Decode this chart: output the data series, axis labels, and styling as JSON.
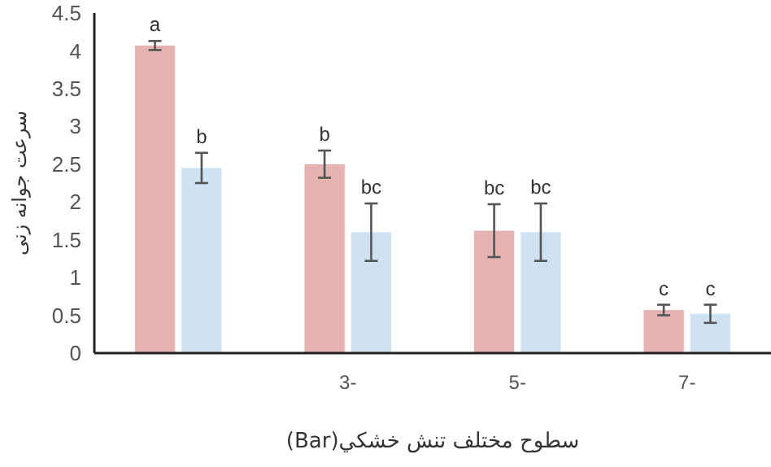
{
  "chart_data": {
    "type": "bar",
    "xlabel": "سطوح مختلف تنش خشكي(Bar)",
    "ylabel": "سرعت جوانه زنی",
    "categories": [
      null,
      "3-",
      "5-",
      "7-"
    ],
    "ylim": [
      0,
      4.5
    ],
    "yticks": [
      0,
      0.5,
      1,
      1.5,
      2,
      2.5,
      3,
      3.5,
      4,
      4.5
    ],
    "grid": false,
    "series": [
      {
        "color": "#e6b3b3",
        "values": [
          4.07,
          2.5,
          1.62,
          0.57
        ],
        "errors": [
          0.06,
          0.18,
          0.35,
          0.07
        ],
        "value_labels": [
          "a",
          "b",
          "bc",
          "c"
        ]
      },
      {
        "color": "#cfe2f3",
        "values": [
          2.45,
          1.6,
          1.6,
          0.52
        ],
        "errors": [
          0.2,
          0.38,
          0.38,
          0.12
        ],
        "value_labels": [
          "b",
          "bc",
          "bc",
          "c"
        ]
      }
    ]
  }
}
